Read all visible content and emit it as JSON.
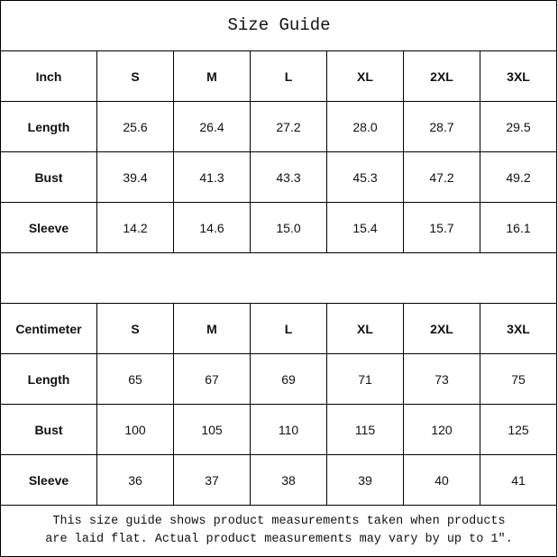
{
  "title": "Size Guide",
  "sizes": [
    "S",
    "M",
    "L",
    "XL",
    "2XL",
    "3XL"
  ],
  "tables": [
    {
      "unit": "Inch",
      "rows": [
        {
          "label": "Length",
          "values": [
            "25.6",
            "26.4",
            "27.2",
            "28.0",
            "28.7",
            "29.5"
          ]
        },
        {
          "label": "Bust",
          "values": [
            "39.4",
            "41.3",
            "43.3",
            "45.3",
            "47.2",
            "49.2"
          ]
        },
        {
          "label": "Sleeve",
          "values": [
            "14.2",
            "14.6",
            "15.0",
            "15.4",
            "15.7",
            "16.1"
          ]
        }
      ]
    },
    {
      "unit": "Centimeter",
      "rows": [
        {
          "label": "Length",
          "values": [
            "65",
            "67",
            "69",
            "71",
            "73",
            "75"
          ]
        },
        {
          "label": "Bust",
          "values": [
            "100",
            "105",
            "110",
            "115",
            "120",
            "125"
          ]
        },
        {
          "label": "Sleeve",
          "values": [
            "36",
            "37",
            "38",
            "39",
            "40",
            "41"
          ]
        }
      ]
    }
  ],
  "note": {
    "line1": "This size guide shows product measurements taken when products",
    "line2": "are laid flat. Actual product measurements may vary by up to 1″."
  }
}
